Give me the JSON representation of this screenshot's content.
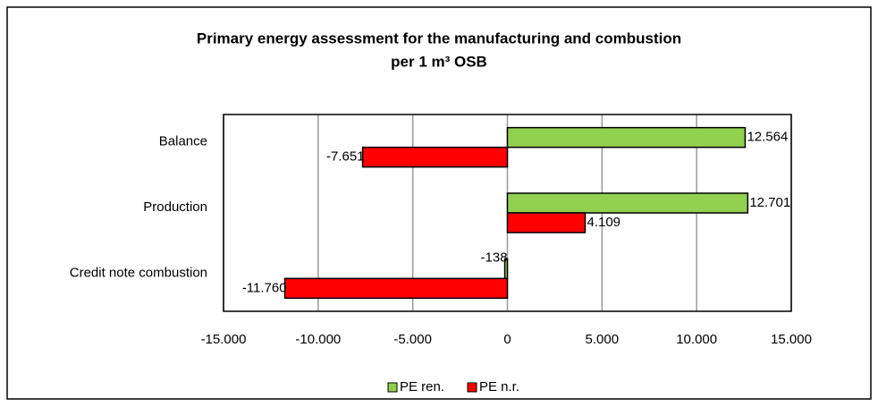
{
  "chart_data": {
    "type": "bar",
    "orientation": "horizontal",
    "title": [
      "Primary energy assessment for the manufacturing and combustion",
      "per 1 m³ OSB"
    ],
    "categories": [
      "Balance",
      "Production",
      "Credit note combustion"
    ],
    "series": [
      {
        "name": "PE ren.",
        "color": "#92d050",
        "values": [
          12564,
          12701,
          -138
        ],
        "value_labels": [
          "12.564",
          "12.701",
          "-138"
        ]
      },
      {
        "name": "PE n.r.",
        "color": "#ff0000",
        "values": [
          -7651,
          4109,
          -11760
        ],
        "value_labels": [
          "-7.651",
          "4.109",
          "-11.760"
        ]
      }
    ],
    "xlim": [
      -15000,
      15000
    ],
    "xticks": [
      {
        "value": -15000,
        "label": "-15.000"
      },
      {
        "value": -10000,
        "label": "-10.000"
      },
      {
        "value": -5000,
        "label": "-5.000"
      },
      0,
      {
        "value": 5000,
        "label": "5.000"
      },
      {
        "value": 10000,
        "label": "10.000"
      },
      {
        "value": 15000,
        "label": "15.000"
      }
    ],
    "grid": true,
    "legend": "bottom"
  }
}
